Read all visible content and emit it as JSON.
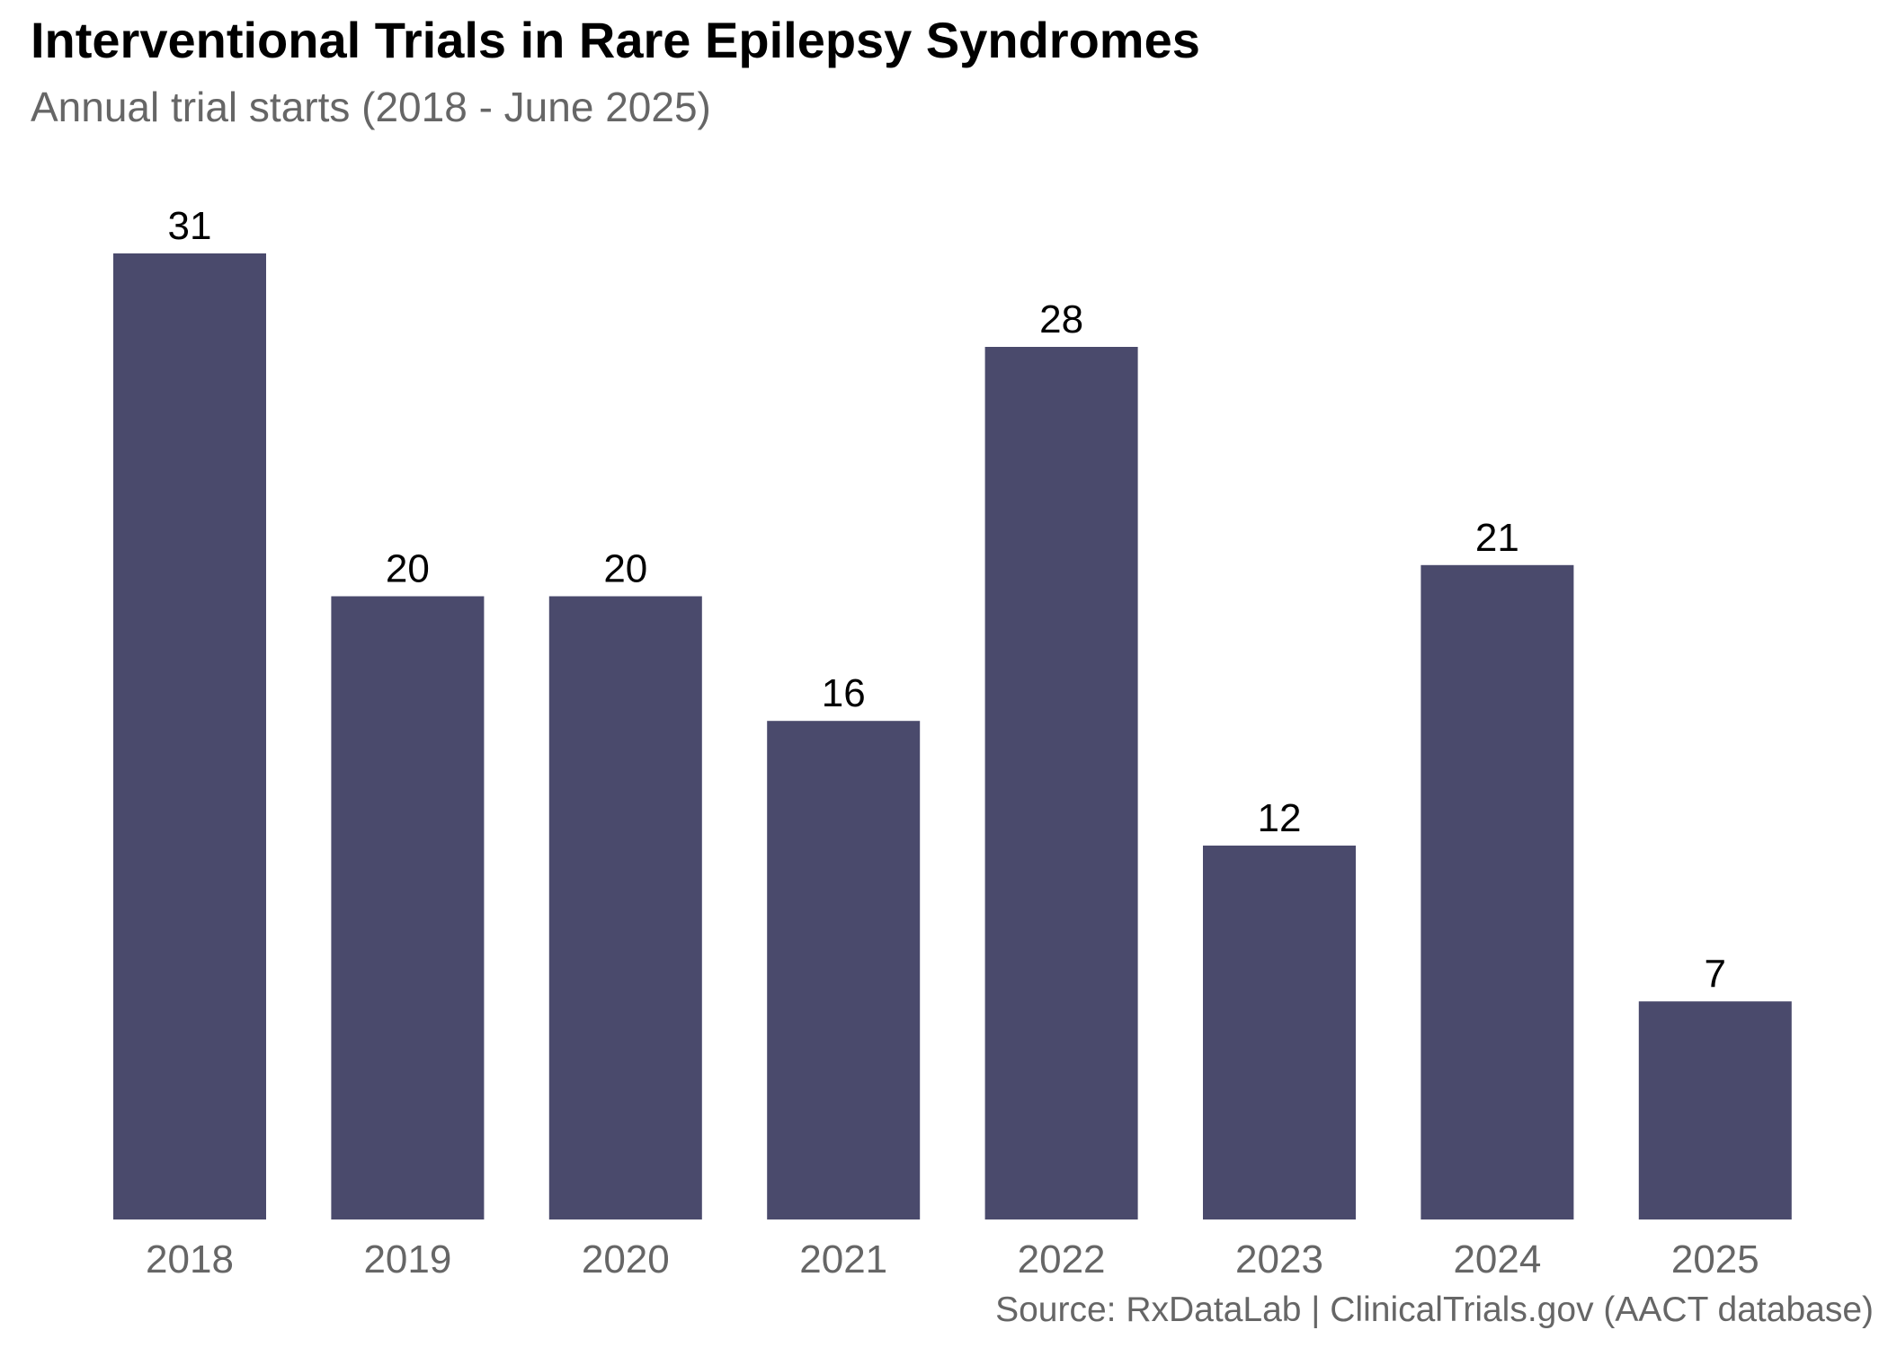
{
  "chart_data": {
    "type": "bar",
    "title": "Interventional Trials in Rare Epilepsy Syndromes",
    "subtitle": "Annual trial starts (2018 - June 2025)",
    "caption": "Source: RxDataLab | ClinicalTrials.gov (AACT database)",
    "xlabel": "",
    "ylabel": "",
    "categories": [
      "2018",
      "2019",
      "2020",
      "2021",
      "2022",
      "2023",
      "2024",
      "2025"
    ],
    "values": [
      31,
      20,
      20,
      16,
      28,
      12,
      21,
      7
    ],
    "ylim": [
      0,
      31
    ],
    "grid": false,
    "legend": "none",
    "colors": {
      "bar": "#4a4a6c",
      "label": "#000000",
      "tick": "#666666"
    }
  }
}
